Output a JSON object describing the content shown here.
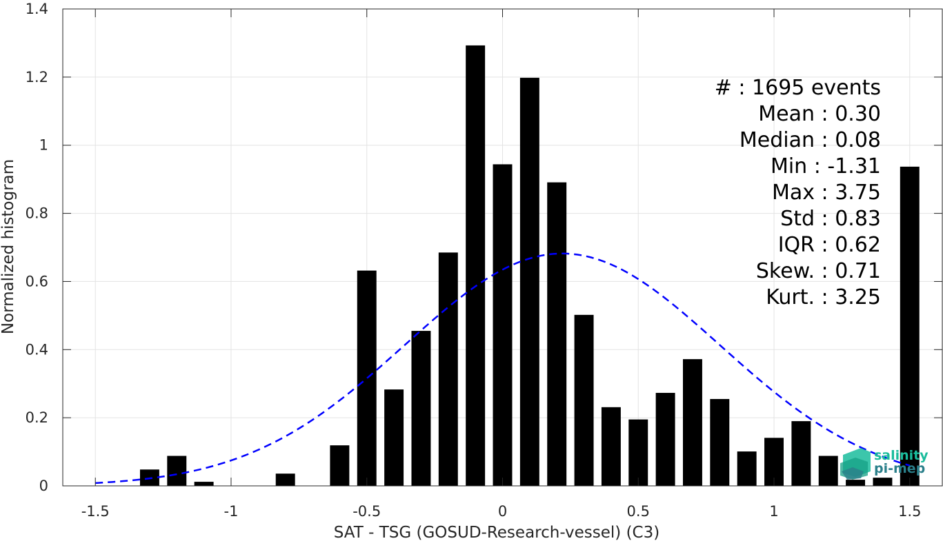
{
  "chart_data": {
    "type": "bar",
    "xlabel": "SAT - TSG (GOSUD-Research-vessel) (C3)",
    "ylabel": "Normalized histogram",
    "xlim": [
      -1.62,
      1.62
    ],
    "ylim": [
      0,
      1.4
    ],
    "xticks": [
      -1.5,
      -1,
      -0.5,
      0,
      0.5,
      1,
      1.5
    ],
    "xtick_labels": [
      "-1.5",
      "-1",
      "-0.5",
      "0",
      "0.5",
      "1",
      "1.5"
    ],
    "yticks": [
      0,
      0.2,
      0.4,
      0.6,
      0.8,
      1,
      1.2,
      1.4
    ],
    "ytick_labels": [
      "0",
      "0.2",
      "0.4",
      "0.6",
      "0.8",
      "1",
      "1.2",
      "1.4"
    ],
    "grid": true,
    "bin_width": 0.1,
    "bar_color": "#000000",
    "bars": [
      {
        "x": -1.3,
        "y": 0.048
      },
      {
        "x": -1.2,
        "y": 0.088
      },
      {
        "x": -1.1,
        "y": 0.012
      },
      {
        "x": -0.8,
        "y": 0.036
      },
      {
        "x": -0.6,
        "y": 0.119
      },
      {
        "x": -0.5,
        "y": 0.632
      },
      {
        "x": -0.4,
        "y": 0.283
      },
      {
        "x": -0.3,
        "y": 0.455
      },
      {
        "x": -0.2,
        "y": 0.685
      },
      {
        "x": -0.1,
        "y": 1.293
      },
      {
        "x": 0.0,
        "y": 0.944
      },
      {
        "x": 0.1,
        "y": 1.198
      },
      {
        "x": 0.2,
        "y": 0.891
      },
      {
        "x": 0.3,
        "y": 0.502
      },
      {
        "x": 0.4,
        "y": 0.231
      },
      {
        "x": 0.5,
        "y": 0.195
      },
      {
        "x": 0.6,
        "y": 0.273
      },
      {
        "x": 0.7,
        "y": 0.372
      },
      {
        "x": 0.8,
        "y": 0.255
      },
      {
        "x": 0.9,
        "y": 0.101
      },
      {
        "x": 1.0,
        "y": 0.141
      },
      {
        "x": 1.1,
        "y": 0.19
      },
      {
        "x": 1.2,
        "y": 0.088
      },
      {
        "x": 1.3,
        "y": 0.018
      },
      {
        "x": 1.4,
        "y": 0.024
      },
      {
        "x": 1.5,
        "y": 0.937
      }
    ],
    "fit_curve": {
      "type": "gaussian",
      "mean": 0.22,
      "peak": 0.682,
      "sigma": 0.58,
      "x_range": [
        -1.5,
        1.5
      ],
      "color": "#0000ff",
      "style": "dashed"
    },
    "stats_box": {
      "placement": "top-right",
      "lines": [
        "#  : 1695 events",
        "Mean : 0.30",
        "Median : 0.08",
        "Min : -1.31",
        "Max : 3.75",
        "Std : 0.83",
        "IQR : 0.62",
        "Skew. : 0.71",
        "Kurt. : 3.25"
      ]
    }
  },
  "logo": {
    "line1": "salinity",
    "line2": "pi-mep",
    "color_primary": "#1abc9c",
    "color_secondary": "#2a7f8a"
  }
}
